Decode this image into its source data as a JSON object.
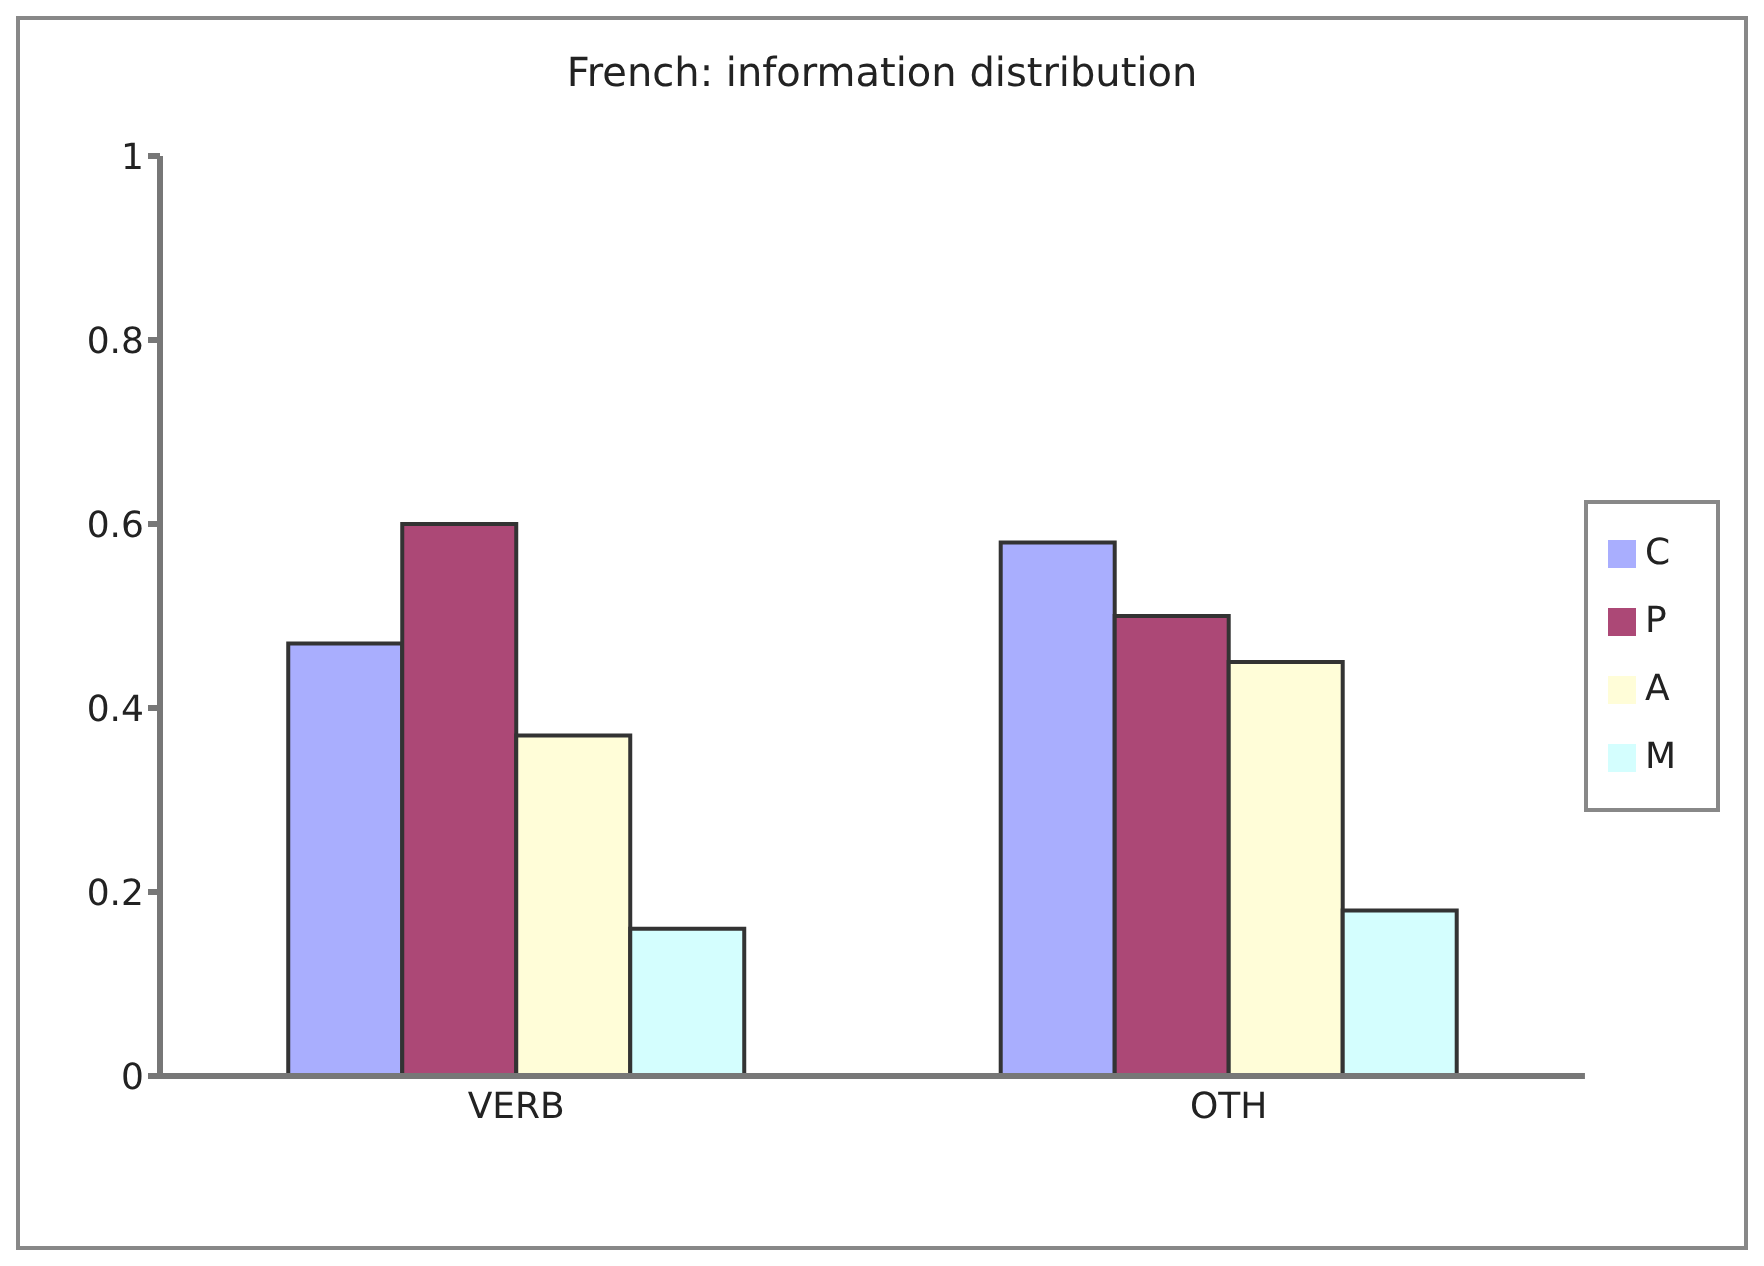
{
  "chart_data": {
    "type": "bar",
    "title": "French: information distribution",
    "categories": [
      "VERB",
      "OTH"
    ],
    "series": [
      {
        "name": "C",
        "color": "#a9aefe",
        "values": [
          0.47,
          0.58
        ]
      },
      {
        "name": "P",
        "color": "#ac4876",
        "values": [
          0.6,
          0.5
        ]
      },
      {
        "name": "A",
        "color": "#fffdd8",
        "values": [
          0.37,
          0.45
        ]
      },
      {
        "name": "M",
        "color": "#d4fefe",
        "values": [
          0.16,
          0.18
        ]
      }
    ],
    "ylim": [
      0,
      1
    ],
    "yticks": [
      0,
      0.2,
      0.4,
      0.6,
      0.8,
      1
    ],
    "grid": false,
    "legend": "right"
  }
}
